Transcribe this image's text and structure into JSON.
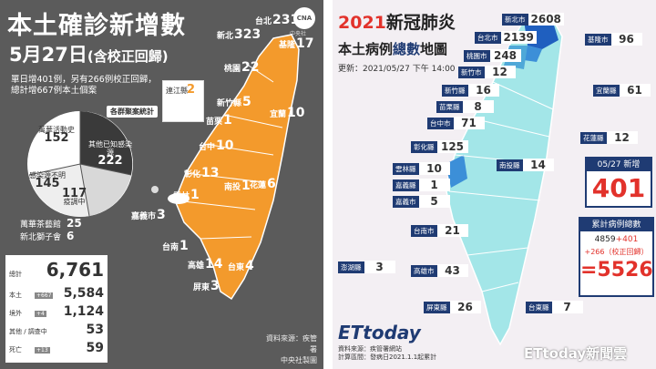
{
  "left": {
    "title": "本土確診新增數",
    "date": "5月27日",
    "date_sub": "(含校正回歸)",
    "logo": "CNA",
    "logo_caption": "中央社",
    "note_lines": [
      "單日增401例，另有266例校正回歸，",
      "總計增667例本土個案"
    ],
    "lienchiang": {
      "name": "連江縣",
      "value": "2"
    },
    "cluster_title": "各群聚案統計",
    "pie": [
      {
        "name": "萬華活動史",
        "value": "152"
      },
      {
        "name": "其他已知感染源",
        "value": "222"
      },
      {
        "name": "感染源不明",
        "value": "145"
      },
      {
        "name": "疫調中",
        "value": "117"
      }
    ],
    "extra": [
      {
        "name": "萬華茶藝館",
        "value": "25"
      },
      {
        "name": "新北獅子會",
        "value": "6"
      }
    ],
    "totals": {
      "total_label": "總計",
      "total_value": "6,761",
      "rows": [
        {
          "label": "本土",
          "delta": "+667",
          "value": "5,584"
        },
        {
          "label": "境外",
          "delta": "+4",
          "value": "1,124"
        },
        {
          "label": "其他 / 調查中",
          "delta": "",
          "value": "53"
        },
        {
          "label": "死亡",
          "delta": "+13",
          "value": "59"
        }
      ]
    },
    "map_labels": [
      {
        "name": "台北",
        "value": "231"
      },
      {
        "name": "新北",
        "value": "323"
      },
      {
        "name": "基隆",
        "value": "17"
      },
      {
        "name": "桃園",
        "value": "22"
      },
      {
        "name": "新竹縣",
        "value": "5"
      },
      {
        "name": "苗栗",
        "value": "1"
      },
      {
        "name": "宜蘭",
        "value": "10"
      },
      {
        "name": "台中",
        "value": "10"
      },
      {
        "name": "彰化",
        "value": "13"
      },
      {
        "name": "南投",
        "value": "1"
      },
      {
        "name": "雲林",
        "value": "1"
      },
      {
        "name": "花蓮",
        "value": "6"
      },
      {
        "name": "嘉義市",
        "value": "3"
      },
      {
        "name": "台南",
        "value": "1"
      },
      {
        "name": "高雄",
        "value": "14"
      },
      {
        "name": "台東",
        "value": "4"
      },
      {
        "name": "屏東",
        "value": "3"
      }
    ],
    "source_lines": [
      "資料來源：疾管署",
      "中央社製圖"
    ],
    "map_color": "#f39a2c"
  },
  "right": {
    "title_year": "2021",
    "title_rest": "新冠肺炎",
    "subtitle_a": "本土病例",
    "subtitle_b": "總數",
    "subtitle_c": "地圖",
    "updated": "更新：2021/05/27 下午 14:00",
    "labels": [
      {
        "name": "新北市",
        "value": "2608"
      },
      {
        "name": "台北市",
        "value": "2139"
      },
      {
        "name": "基隆市",
        "value": "96"
      },
      {
        "name": "桃園市",
        "value": "248"
      },
      {
        "name": "新竹市",
        "value": "12"
      },
      {
        "name": "新竹縣",
        "value": "16"
      },
      {
        "name": "宜蘭縣",
        "value": "61"
      },
      {
        "name": "苗栗縣",
        "value": "8"
      },
      {
        "name": "台中市",
        "value": "71"
      },
      {
        "name": "花蓮縣",
        "value": "12"
      },
      {
        "name": "彰化縣",
        "value": "125"
      },
      {
        "name": "南投縣",
        "value": "14"
      },
      {
        "name": "雲林縣",
        "value": "10"
      },
      {
        "name": "嘉義縣",
        "value": "1"
      },
      {
        "name": "嘉義市",
        "value": "5"
      },
      {
        "name": "台南市",
        "value": "21"
      },
      {
        "name": "澎湖縣",
        "value": "3"
      },
      {
        "name": "高雄市",
        "value": "43"
      },
      {
        "name": "屏東縣",
        "value": "26"
      },
      {
        "name": "台東縣",
        "value": "7"
      }
    ],
    "new_box": {
      "header": "05/27 新增",
      "value": "401"
    },
    "total_box": {
      "header": "累計病例總數",
      "formula_a": "4859",
      "formula_b": "+401",
      "formula_c": "+266（校正回歸）",
      "sum": "=5526"
    },
    "brand": "ETtoday",
    "source_lines": [
      "資料來源：疾管署網站",
      "計算區間：發病日2021.1.1起累計"
    ],
    "watermark": "ETtoday新聞雲",
    "map_color": "#a3e6e8",
    "dark_blue": "#1f5fbf"
  }
}
